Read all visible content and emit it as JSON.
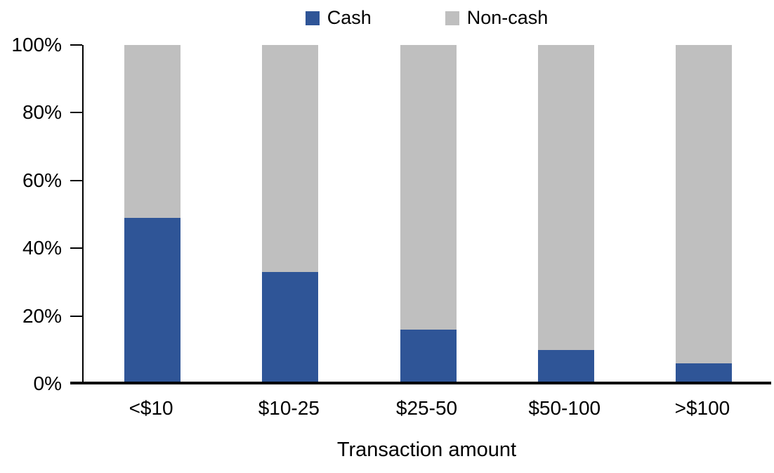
{
  "chart_data": {
    "type": "bar",
    "stacked": true,
    "percent_stacked": true,
    "title": "",
    "xlabel": "Transaction amount",
    "ylabel": "",
    "categories": [
      "<$10",
      "$10-25",
      "$25-50",
      "$50-100",
      ">$100"
    ],
    "series": [
      {
        "name": "Cash",
        "color": "#2F5597",
        "values": [
          49,
          33,
          16,
          10,
          6
        ]
      },
      {
        "name": "Non-cash",
        "color": "#BFBFBF",
        "values": [
          51,
          67,
          84,
          90,
          94
        ]
      }
    ],
    "y_axis": {
      "min": 0,
      "max": 100,
      "unit": "%",
      "ticks": [
        "100%",
        "80%",
        "60%",
        "40%",
        "20%",
        "0%"
      ]
    },
    "legend_position": "top",
    "grid": false,
    "colors": {
      "axis": "#000000",
      "background": "#FFFFFF"
    }
  }
}
